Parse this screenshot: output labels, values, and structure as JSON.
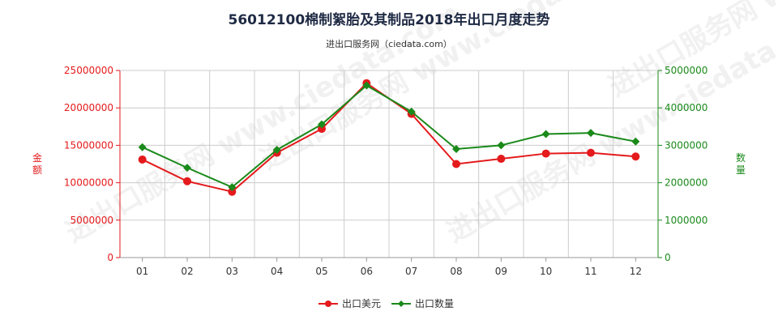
{
  "title": "56012100棉制絮胎及其制品2018年出口月度走势",
  "subtitle": "进出口服务网（ciedata.com）",
  "watermark": "进出口服务网 www.ciedata.com",
  "colors": {
    "usd": "#e41a1c",
    "qty": "#1a8a1a",
    "grid": "#cccccc",
    "frame": "#999999"
  },
  "chart_data": {
    "type": "line",
    "categories": [
      "01",
      "02",
      "03",
      "04",
      "05",
      "06",
      "07",
      "08",
      "09",
      "10",
      "11",
      "12"
    ],
    "series": [
      {
        "name": "出口美元",
        "axis": "left",
        "values": [
          13100000,
          10200000,
          8800000,
          14000000,
          17200000,
          23300000,
          19200000,
          12500000,
          13200000,
          13900000,
          14000000,
          13500000
        ]
      },
      {
        "name": "出口数量",
        "axis": "right",
        "values": [
          2950000,
          2400000,
          1880000,
          2880000,
          3560000,
          4600000,
          3900000,
          2900000,
          3000000,
          3300000,
          3330000,
          3100000
        ]
      }
    ],
    "y_left": {
      "label": "金额",
      "ylim": [
        0,
        25000000
      ],
      "ticks": [
        "0",
        "5000000",
        "10000000",
        "15000000",
        "20000000",
        "25000000"
      ]
    },
    "y_right": {
      "label": "数量",
      "ylim": [
        0,
        5000000
      ],
      "ticks": [
        "0",
        "1000000",
        "2000000",
        "3000000",
        "4000000",
        "5000000"
      ]
    },
    "grid": true,
    "legend": "bottom-center"
  }
}
